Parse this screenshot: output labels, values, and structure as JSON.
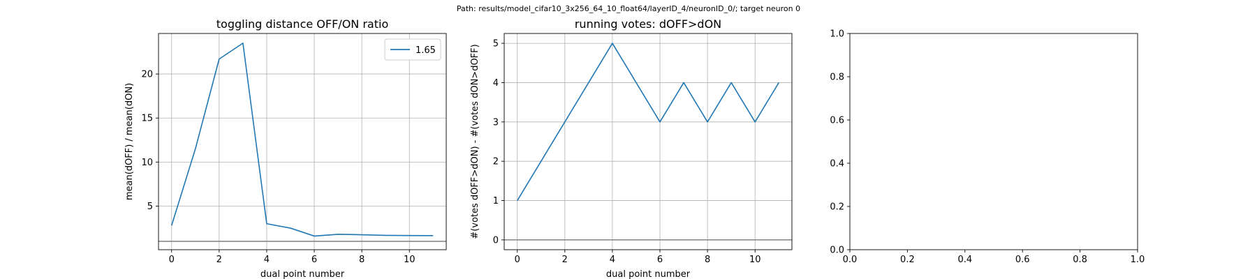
{
  "figure": {
    "suptitle": "Path: results/model_cifar10_3x256_64_10_float64/layerID_4/neuronID_0/; target neuron 0"
  },
  "colors": {
    "line": "#1f77b4",
    "refline": "#808080",
    "grid": "#b0b0b0",
    "axes": "#000000"
  },
  "chart_data": [
    {
      "type": "line",
      "title": "toggling distance OFF/ON ratio",
      "xlabel": "dual point number",
      "ylabel": "mean(dOFF) / mean(dON)",
      "xlim": [
        -0.55,
        11.55
      ],
      "ylim": [
        0.05,
        24.6
      ],
      "xticks": [
        0,
        2,
        4,
        6,
        8,
        10
      ],
      "yticks": [
        5,
        10,
        15,
        20
      ],
      "grid": true,
      "legend": "top-right",
      "hline": 1,
      "series": [
        {
          "name": "1.65",
          "x": [
            0,
            1,
            2,
            3,
            4,
            5,
            6,
            7,
            8,
            9,
            10,
            11
          ],
          "y": [
            2.8,
            11.5,
            21.7,
            23.5,
            3.0,
            2.5,
            1.6,
            1.8,
            1.75,
            1.68,
            1.66,
            1.65
          ]
        }
      ]
    },
    {
      "type": "line",
      "title": "running votes: dOFF>dON",
      "xlabel": "dual point number",
      "ylabel": "#(votes dOFF>dON) - #(votes dON>dOFF)",
      "xlim": [
        -0.55,
        11.55
      ],
      "ylim": [
        -0.25,
        5.25
      ],
      "xticks": [
        0,
        2,
        4,
        6,
        8,
        10
      ],
      "yticks": [
        0,
        1,
        2,
        3,
        4,
        5
      ],
      "grid": true,
      "hline": 0,
      "series": [
        {
          "x": [
            0,
            1,
            2,
            3,
            4,
            5,
            6,
            7,
            8,
            9,
            10,
            11
          ],
          "y": [
            1,
            2,
            3,
            4,
            5,
            4,
            3,
            4,
            3,
            4,
            3,
            4
          ]
        }
      ]
    },
    {
      "type": "line",
      "title": "",
      "xlabel": "",
      "ylabel": "",
      "xlim": [
        0,
        1
      ],
      "ylim": [
        0,
        1
      ],
      "xticks": [
        "0.0",
        "0.2",
        "0.4",
        "0.6",
        "0.8",
        "1.0"
      ],
      "yticks": [
        "0.0",
        "0.2",
        "0.4",
        "0.6",
        "0.8",
        "1.0"
      ],
      "grid": false,
      "series": []
    }
  ]
}
